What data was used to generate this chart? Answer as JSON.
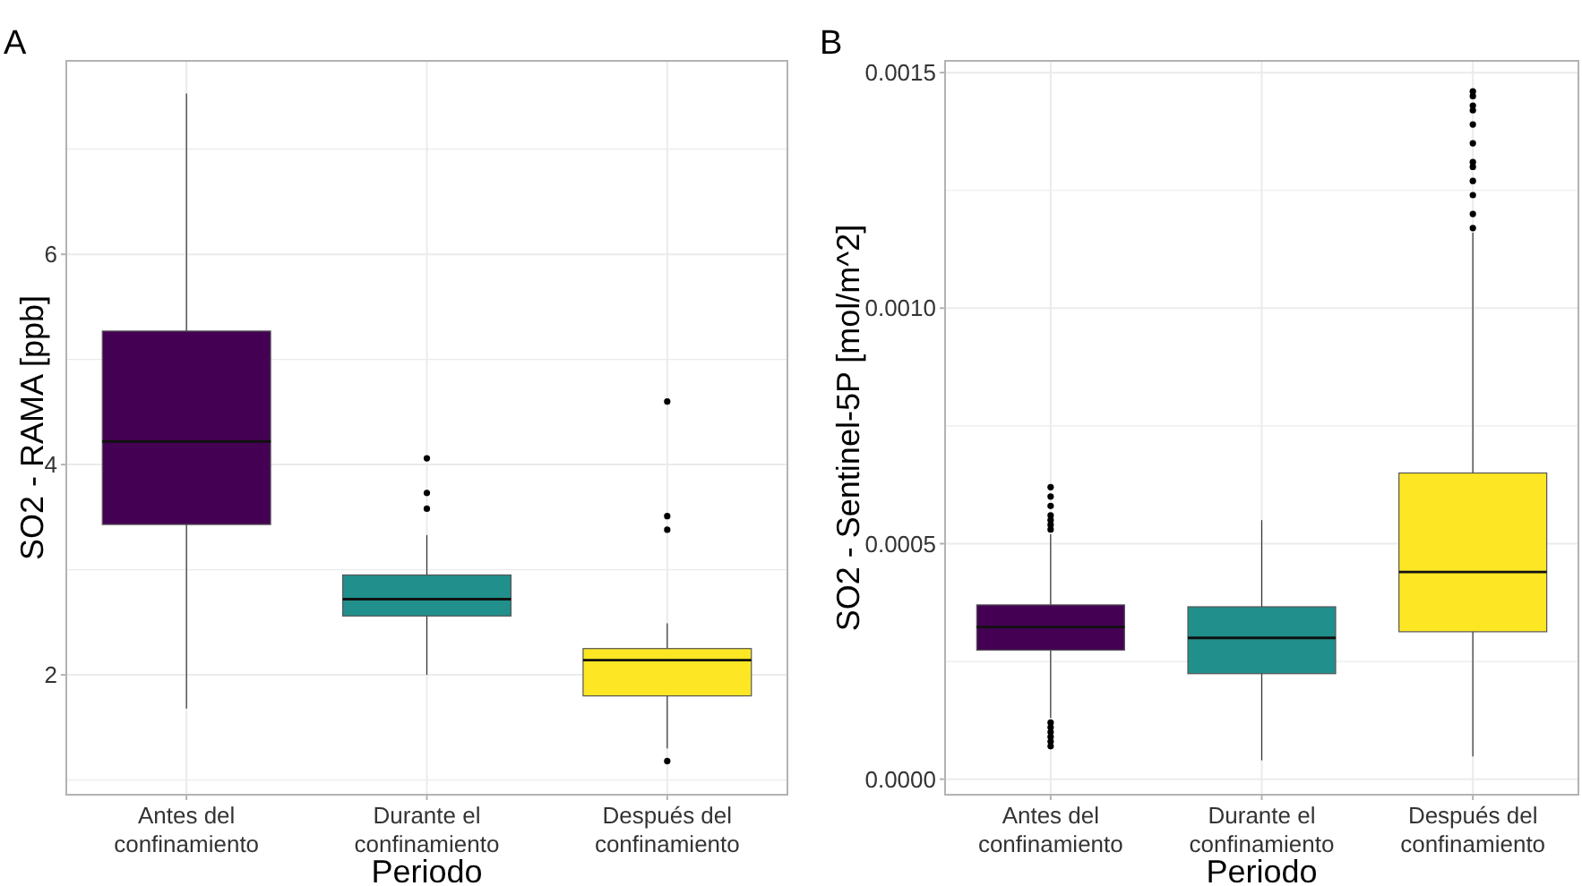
{
  "chart_data": [
    {
      "type": "box",
      "title": "A",
      "xlabel": "Periodo",
      "ylabel": "SO2 - RAMA [ppb]",
      "categories": [
        "Antes del confinamiento",
        "Durante el confinamiento",
        "Después del confinamiento"
      ],
      "colors": [
        "#440154",
        "#21908c",
        "#fde725"
      ],
      "ylim": [
        0.86,
        7.84
      ],
      "yticks": [
        {
          "value": 1,
          "label": null
        },
        2,
        {
          "value": 3,
          "label": null
        },
        4,
        {
          "value": 5,
          "label": null
        },
        6,
        {
          "value": 7,
          "label": null
        }
      ],
      "grid": true,
      "boxes": [
        {
          "low": 1.68,
          "q1": 3.43,
          "median": 4.22,
          "q3": 5.27,
          "high": 7.53
        },
        {
          "low": 2.0,
          "q1": 2.56,
          "median": 2.72,
          "q3": 2.95,
          "high": 3.33,
          "outliers": [
            3.58,
            3.73,
            4.06
          ]
        },
        {
          "low": 1.3,
          "q1": 1.8,
          "median": 2.14,
          "q3": 2.25,
          "high": 2.49,
          "outliers": [
            1.18,
            3.38,
            3.51,
            4.6
          ]
        }
      ]
    },
    {
      "type": "box",
      "title": "B",
      "xlabel": "Periodo",
      "ylabel": "SO2 - Sentinel-5P [mol/m^2]",
      "categories": [
        "Antes del confinamiento",
        "Durante el confinamiento",
        "Después del confinamiento"
      ],
      "colors": [
        "#440154",
        "#21908c",
        "#fde725"
      ],
      "ylim": [
        -3.3e-05,
        0.001525
      ],
      "yticks": [
        {
          "value": 0,
          "label": "0.0000"
        },
        {
          "value": 0.00025,
          "label": null
        },
        {
          "value": 0.0005,
          "label": "0.0005"
        },
        {
          "value": 0.00075,
          "label": null
        },
        {
          "value": 0.001,
          "label": "0.0010"
        },
        {
          "value": 0.00125,
          "label": null
        },
        {
          "value": 0.0015,
          "label": "0.0015"
        }
      ],
      "grid": true,
      "boxes": [
        {
          "low": 0.00013,
          "q1": 0.000274,
          "median": 0.000323,
          "q3": 0.00037,
          "high": 0.00052,
          "outliers": [
            7e-05,
            8e-05,
            9e-05,
            0.0001,
            0.00011,
            0.00012,
            0.00053,
            0.00054,
            0.00055,
            0.00056,
            0.00058,
            0.0006,
            0.00062
          ]
        },
        {
          "low": 4e-05,
          "q1": 0.000224,
          "median": 0.0003,
          "q3": 0.000366,
          "high": 0.00055
        },
        {
          "low": 4.8e-05,
          "q1": 0.000313,
          "median": 0.00044,
          "q3": 0.00065,
          "high": 0.00116,
          "outliers": [
            0.00117,
            0.0012,
            0.00124,
            0.00127,
            0.0013,
            0.00131,
            0.00135,
            0.00139,
            0.00142,
            0.00143,
            0.00145,
            0.00146
          ]
        }
      ]
    }
  ]
}
